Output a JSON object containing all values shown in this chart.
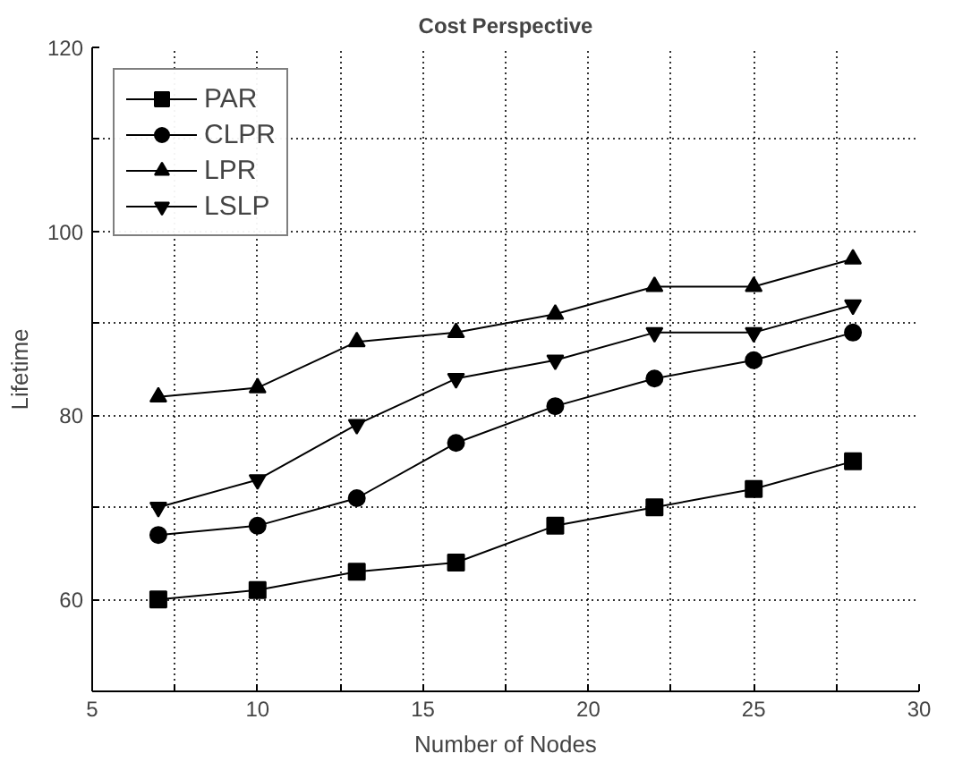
{
  "chart_data": {
    "type": "line",
    "title": "Cost Perspective",
    "xlabel": "Number of Nodes",
    "ylabel": "Lifetime",
    "x": [
      7,
      10,
      13,
      16,
      19,
      22,
      25,
      28
    ],
    "xlim": [
      5,
      30
    ],
    "ylim": [
      50,
      120
    ],
    "xticks": [
      5,
      {
        "value": 7.5,
        "label": null
      },
      10,
      {
        "value": 12.5,
        "label": null
      },
      15,
      {
        "value": 17.5,
        "label": null
      },
      20,
      {
        "value": 22.5,
        "label": null
      },
      25,
      {
        "value": 27.5,
        "label": null
      },
      30
    ],
    "yticks": [
      60,
      {
        "value": 70,
        "label": null
      },
      80,
      {
        "value": 90,
        "label": null
      },
      100,
      {
        "value": 110,
        "label": null
      },
      120
    ],
    "grid": true,
    "legend": "top left",
    "line_style": "solid",
    "series": [
      {
        "name": "PAR",
        "color": "#000000",
        "marker": "square",
        "values": [
          60,
          61,
          63,
          64,
          68,
          70,
          72,
          75
        ]
      },
      {
        "name": "CLPR",
        "color": "#000000",
        "marker": "circle",
        "values": [
          67,
          68,
          71,
          77,
          81,
          84,
          86,
          89
        ]
      },
      {
        "name": "LPR",
        "color": "#000000",
        "marker": "triangle",
        "values": [
          82,
          83,
          88,
          89,
          91,
          94,
          94,
          97
        ]
      },
      {
        "name": "LSLP",
        "color": "#000000",
        "marker": "triangle",
        "values": [
          70,
          73,
          79,
          84,
          86,
          89,
          89,
          92
        ]
      }
    ]
  }
}
